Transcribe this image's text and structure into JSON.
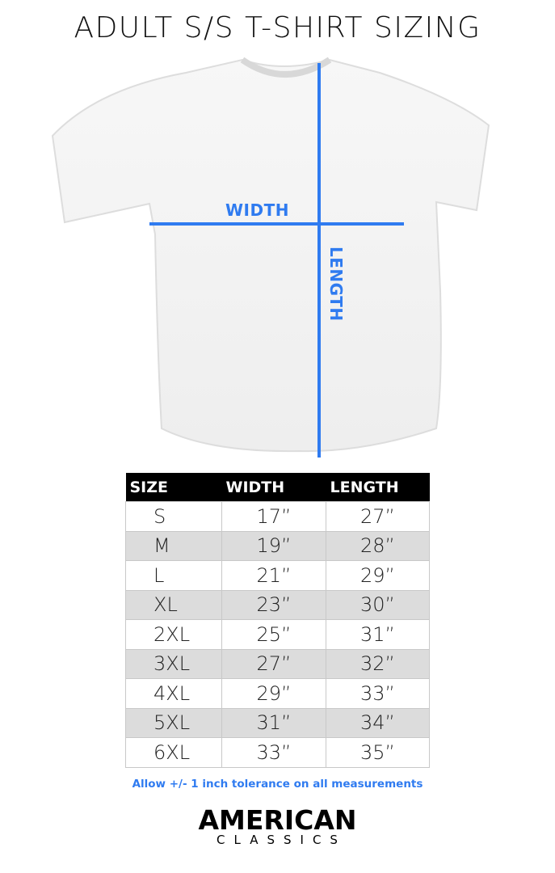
{
  "title": "ADULT S/S T-SHIRT SIZING",
  "diagram": {
    "width_label": "WIDTH",
    "length_label": "LENGTH",
    "accent_color": "#2f7bf0"
  },
  "table": {
    "headers": [
      "SIZE",
      "WIDTH",
      "LENGTH"
    ],
    "rows": [
      [
        "S",
        "17”",
        "27”"
      ],
      [
        "M",
        "19”",
        "28”"
      ],
      [
        "L",
        "21”",
        "29”"
      ],
      [
        "XL",
        "23”",
        "30”"
      ],
      [
        "2XL",
        "25”",
        "31”"
      ],
      [
        "3XL",
        "27”",
        "32”"
      ],
      [
        "4XL",
        "29”",
        "33”"
      ],
      [
        "5XL",
        "31”",
        "34”"
      ],
      [
        "6XL",
        "33”",
        "35”"
      ]
    ]
  },
  "note": "Allow +/- 1 inch tolerance on all measurements",
  "logo": {
    "line1": "AMERICAN",
    "line2": "CLASSICS"
  }
}
